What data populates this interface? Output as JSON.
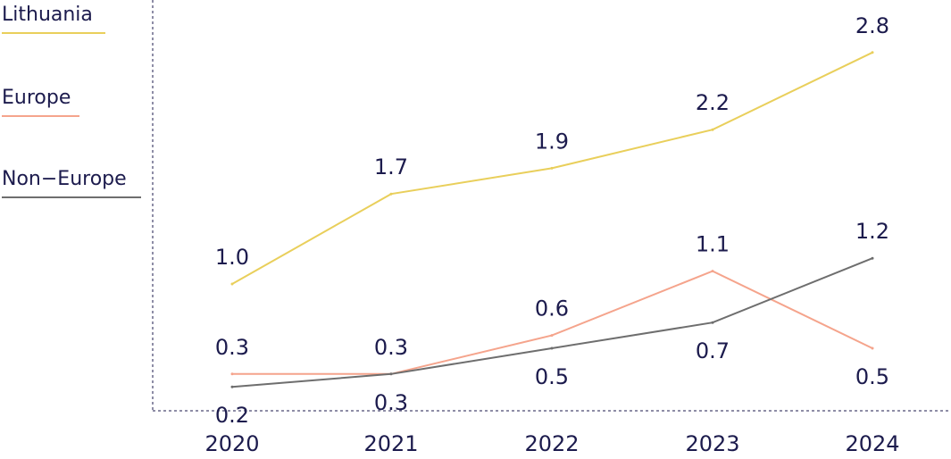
{
  "chart_data": {
    "type": "line",
    "categories": [
      "2020",
      "2021",
      "2022",
      "2023",
      "2024"
    ],
    "series": [
      {
        "name": "Lithuania",
        "color": "#e9cf5b",
        "values": [
          1.0,
          1.7,
          1.9,
          2.2,
          2.8
        ],
        "labels": [
          "1.0",
          "1.7",
          "1.9",
          "2.2",
          "2.8"
        ]
      },
      {
        "name": "Europe",
        "color": "#f5a48c",
        "values": [
          0.3,
          0.3,
          0.6,
          1.1,
          0.5
        ],
        "labels": [
          "0.3",
          "0.3",
          "0.6",
          "1.1",
          "0.5"
        ]
      },
      {
        "name": "Non−Europe",
        "color": "#6e6e6e",
        "values": [
          0.2,
          0.3,
          0.5,
          0.7,
          1.2
        ],
        "labels": [
          "0.2",
          "0.3",
          "0.5",
          "0.7",
          "1.2"
        ]
      }
    ],
    "ylim": [
      0,
      3
    ],
    "xlabel": "",
    "ylabel": "",
    "legend_position": "left",
    "grid": false,
    "axis_color": "#1c1b4d",
    "text_color": "#1c1b4d"
  }
}
